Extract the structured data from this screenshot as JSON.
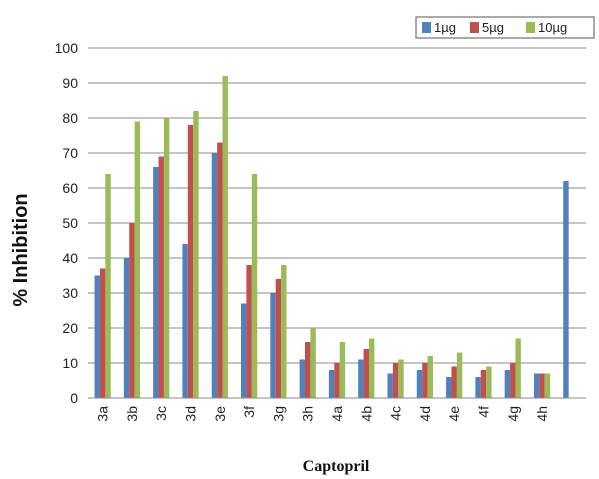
{
  "chart_data": {
    "type": "bar",
    "categories": [
      "3a",
      "3b",
      "3c",
      "3d",
      "3e",
      "3f",
      "3g",
      "3h",
      "4a",
      "4b",
      "4c",
      "4d",
      "4e",
      "4f",
      "4g",
      "4h",
      ""
    ],
    "series": [
      {
        "name": "1µg",
        "color": "#4f81bd",
        "values": [
          35,
          40,
          66,
          44,
          70,
          27,
          30,
          11,
          8,
          11,
          7,
          8,
          6,
          6,
          8,
          7,
          62
        ]
      },
      {
        "name": "5µg",
        "color": "#c0504d",
        "values": [
          37,
          50,
          69,
          78,
          73,
          38,
          34,
          16,
          10,
          14,
          10,
          10,
          9,
          8,
          10,
          7,
          null
        ]
      },
      {
        "name": "10µg",
        "color": "#9bbb59",
        "values": [
          64,
          79,
          80,
          82,
          92,
          64,
          38,
          20,
          16,
          17,
          11,
          12,
          13,
          9,
          17,
          7,
          null
        ]
      }
    ],
    "xlabel": "Captopril",
    "ylabel": "% Inhibition",
    "ylim": [
      0,
      100
    ],
    "yticks": [
      0,
      10,
      20,
      30,
      40,
      50,
      60,
      70,
      80,
      90,
      100
    ],
    "grid": true,
    "legend_position": "top-right"
  }
}
